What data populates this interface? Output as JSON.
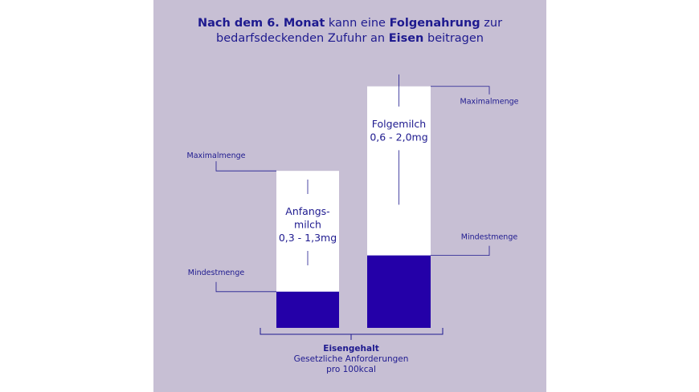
{
  "chart_data": {
    "type": "bar",
    "title_segments": [
      {
        "text": "Nach dem 6. Monat",
        "bold": true
      },
      {
        "text": " kann eine ",
        "bold": false
      },
      {
        "text": "Folgenahrung",
        "bold": true
      },
      {
        "text": " zur",
        "bold": false
      },
      {
        "text": "\n",
        "bold": false
      },
      {
        "text": "bedarfsdeckenden Zufuhr an ",
        "bold": false
      },
      {
        "text": "Eisen",
        "bold": true
      },
      {
        "text": " beitragen",
        "bold": false
      }
    ],
    "unit": "mg",
    "ylim": [
      0,
      2.35
    ],
    "categories": [
      {
        "label_lines": [
          "Anfangs-",
          "milch",
          "0,3 - 1,3mg"
        ],
        "min": 0.3,
        "max": 1.3
      },
      {
        "label_lines": [
          "Folgemilch",
          "0,6 - 2,0mg"
        ],
        "min": 0.6,
        "max": 2.0
      }
    ],
    "min_label": "Mindestmenge",
    "max_label": "Maximalmenge",
    "xlabel": "Eisengehalt",
    "xlabel_sub": [
      "Gesetzliche Anforderungen",
      "pro 100kcal"
    ],
    "colors": {
      "panel": "#c7bfd4",
      "min_fill": "#2400a8",
      "bar_bg": "#ffffff",
      "text": "#1e1a8f"
    }
  }
}
